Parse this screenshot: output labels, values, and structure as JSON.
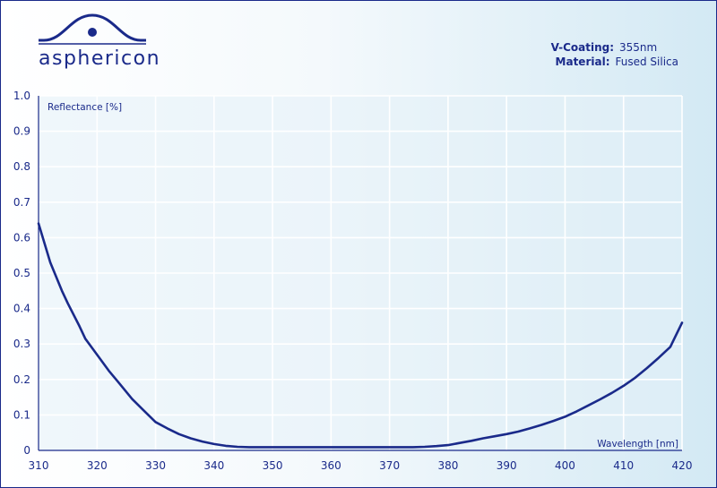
{
  "brand": {
    "name": "asphericon",
    "colors": {
      "primary": "#1a2a8a",
      "line": "#1a2a8a",
      "grid": "#ffffff"
    }
  },
  "info": {
    "coating_label": "V-Coating:",
    "coating_value": "355nm",
    "material_label": "Material:",
    "material_value": "Fused Silica"
  },
  "chart_data": {
    "type": "line",
    "xlabel": "Wavelength [nm]",
    "ylabel": "Reflectance [%]",
    "xlim": [
      310,
      420
    ],
    "ylim": [
      0,
      1.0
    ],
    "xticks": [
      310,
      320,
      330,
      340,
      350,
      360,
      370,
      380,
      390,
      400,
      410,
      420
    ],
    "yticks": [
      "0",
      "0.1",
      "0.2",
      "0.3",
      "0.4",
      "0.5",
      "0.6",
      "0.7",
      "0.8",
      "0.9",
      "1.0"
    ],
    "grid": true,
    "series": [
      {
        "x": [
          310,
          312,
          314,
          315,
          317,
          318,
          320,
          322,
          324,
          326,
          328,
          330,
          332,
          334,
          336,
          338,
          340,
          342,
          344,
          346,
          348,
          350,
          355,
          360,
          365,
          370,
          374,
          376,
          378,
          380,
          382,
          384,
          386,
          388,
          390,
          392,
          394,
          396,
          398,
          400,
          402,
          404,
          406,
          408,
          410,
          412,
          414,
          416,
          418,
          420
        ],
        "y": [
          0.64,
          0.53,
          0.45,
          0.415,
          0.35,
          0.315,
          0.27,
          0.225,
          0.185,
          0.145,
          0.112,
          0.08,
          0.062,
          0.046,
          0.034,
          0.025,
          0.018,
          0.013,
          0.01,
          0.009,
          0.009,
          0.009,
          0.009,
          0.009,
          0.009,
          0.009,
          0.009,
          0.01,
          0.012,
          0.015,
          0.021,
          0.027,
          0.034,
          0.04,
          0.046,
          0.053,
          0.062,
          0.072,
          0.083,
          0.095,
          0.11,
          0.127,
          0.144,
          0.162,
          0.182,
          0.205,
          0.232,
          0.261,
          0.292,
          0.36
        ]
      }
    ]
  }
}
